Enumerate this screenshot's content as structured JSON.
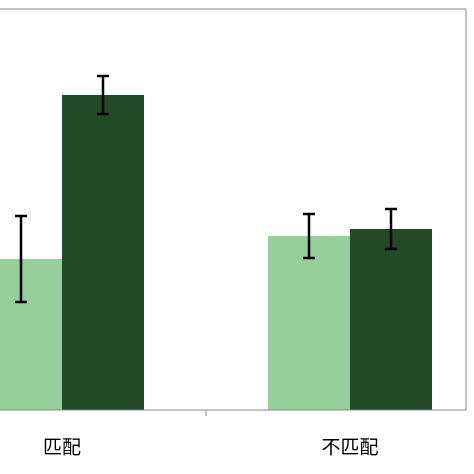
{
  "chart_data": {
    "type": "bar",
    "categories": [
      "匹配",
      "不匹配"
    ],
    "series": [
      {
        "color": "#97cf9b",
        "values": [
          151,
          174
        ],
        "errors": [
          43,
          22
        ]
      },
      {
        "color": "#234a27",
        "values": [
          315,
          181
        ],
        "errors": [
          19,
          20
        ]
      }
    ],
    "ylim": [
      0,
      400
    ]
  }
}
